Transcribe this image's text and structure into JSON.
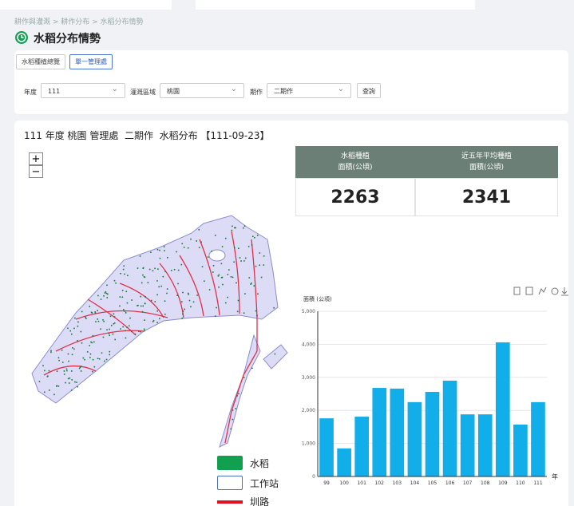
{
  "breadcrumb": "耕作與灌溉 > 耕作分布 > 水稻分布情勢",
  "page_title": "水稻分布情勢",
  "tabs": [
    "水稻種植總覽",
    "單一管理處"
  ],
  "filters": [
    {
      "label": "年度",
      "value": "111"
    },
    {
      "label": "灌溉區域",
      "value": "桃園"
    },
    {
      "label": "期作",
      "value": "二期作"
    }
  ],
  "query_button": "查詢",
  "map_heading": "111 年度 桃園 管理處  二期作  水稻分布 【111-09-23】",
  "zoom": [
    "+",
    "−"
  ],
  "stats": {
    "headers": [
      "水稻種植\n面積(公頃)",
      "近五年平均種植\n面積(公頃)"
    ],
    "values": [
      2263,
      2341
    ]
  },
  "legend": [
    "水稻",
    "工作站",
    "圳路"
  ],
  "chart": {
    "type": "bar",
    "y_label": "面積 (公頃)",
    "x_label": "年",
    "color": "#12aeea",
    "categories": [
      "99",
      "100",
      "101",
      "102",
      "103",
      "104",
      "105",
      "106",
      "107",
      "108",
      "109",
      "110",
      "111"
    ],
    "values": [
      1760,
      850,
      1810,
      2680,
      2660,
      2250,
      2560,
      2900,
      1880,
      1880,
      4060,
      1570,
      2250
    ],
    "ylim": [
      0,
      5000
    ],
    "yticks": [
      0,
      {
        "value": 1000,
        "label": "1,000"
      },
      {
        "value": 2000,
        "label": "2,000"
      },
      {
        "value": 3000,
        "label": "3,000"
      },
      {
        "value": 4000,
        "label": "4,000"
      },
      {
        "value": 5000,
        "label": "5,000"
      }
    ],
    "grid": true
  }
}
